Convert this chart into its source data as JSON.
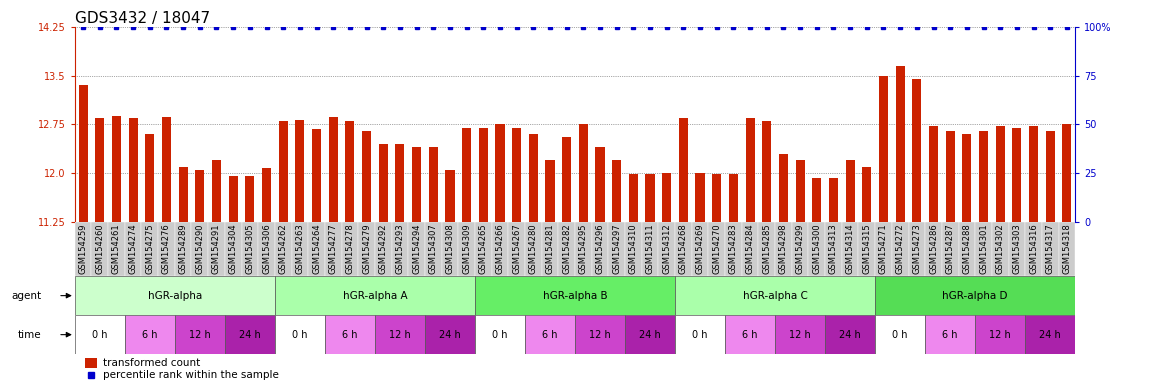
{
  "title": "GDS3432 / 18047",
  "samples": [
    "GSM154259",
    "GSM154260",
    "GSM154261",
    "GSM154274",
    "GSM154275",
    "GSM154276",
    "GSM154289",
    "GSM154290",
    "GSM154291",
    "GSM154304",
    "GSM154305",
    "GSM154306",
    "GSM154262",
    "GSM154263",
    "GSM154264",
    "GSM154277",
    "GSM154278",
    "GSM154279",
    "GSM154292",
    "GSM154293",
    "GSM154294",
    "GSM154307",
    "GSM154308",
    "GSM154309",
    "GSM154265",
    "GSM154266",
    "GSM154267",
    "GSM154280",
    "GSM154281",
    "GSM154282",
    "GSM154295",
    "GSM154296",
    "GSM154297",
    "GSM154310",
    "GSM154311",
    "GSM154312",
    "GSM154268",
    "GSM154269",
    "GSM154270",
    "GSM154283",
    "GSM154284",
    "GSM154285",
    "GSM154298",
    "GSM154299",
    "GSM154300",
    "GSM154313",
    "GSM154314",
    "GSM154315",
    "GSM154271",
    "GSM154272",
    "GSM154273",
    "GSM154286",
    "GSM154287",
    "GSM154288",
    "GSM154301",
    "GSM154302",
    "GSM154303",
    "GSM154316",
    "GSM154317",
    "GSM154318"
  ],
  "bar_values": [
    13.35,
    12.85,
    12.88,
    12.85,
    12.6,
    12.87,
    12.1,
    12.05,
    12.2,
    11.95,
    11.95,
    12.08,
    12.8,
    12.82,
    12.68,
    12.86,
    12.8,
    12.65,
    12.45,
    12.45,
    12.4,
    12.4,
    12.05,
    12.7,
    12.7,
    12.75,
    12.7,
    12.6,
    12.2,
    12.55,
    12.75,
    12.4,
    12.2,
    11.98,
    11.98,
    12.0,
    12.85,
    12.0,
    11.98,
    11.98,
    12.85,
    12.8,
    12.3,
    12.2,
    11.92,
    11.92,
    12.2,
    12.1,
    13.5,
    13.65,
    13.45,
    12.72,
    12.65,
    12.6,
    12.65,
    12.72,
    12.7,
    12.72,
    12.65,
    12.75
  ],
  "percentile_values": [
    100,
    100,
    100,
    100,
    100,
    100,
    100,
    100,
    100,
    100,
    100,
    100,
    100,
    100,
    100,
    100,
    100,
    100,
    100,
    100,
    100,
    100,
    100,
    100,
    100,
    100,
    100,
    100,
    100,
    100,
    100,
    100,
    100,
    100,
    100,
    100,
    100,
    100,
    100,
    100,
    100,
    100,
    100,
    100,
    100,
    100,
    100,
    100,
    100,
    100,
    100,
    100,
    100,
    100,
    100,
    100,
    100,
    100,
    100,
    100
  ],
  "ylim_left": [
    11.25,
    14.25
  ],
  "ylim_right": [
    0,
    100
  ],
  "yticks_left": [
    11.25,
    12.0,
    12.75,
    13.5,
    14.25
  ],
  "yticks_right": [
    0,
    25,
    50,
    75,
    100
  ],
  "bar_color": "#cc2200",
  "dot_color": "#0000cc",
  "bar_bottom": 11.25,
  "agent_groups": [
    {
      "label": "hGR-alpha",
      "start": 0,
      "end": 11,
      "color": "#ccffcc"
    },
    {
      "label": "hGR-alpha A",
      "start": 12,
      "end": 23,
      "color": "#aaffaa"
    },
    {
      "label": "hGR-alpha B",
      "start": 24,
      "end": 35,
      "color": "#66ee66"
    },
    {
      "label": "hGR-alpha C",
      "start": 36,
      "end": 47,
      "color": "#aaffaa"
    },
    {
      "label": "hGR-alpha D",
      "start": 48,
      "end": 59,
      "color": "#55dd55"
    }
  ],
  "time_labels": [
    "0 h",
    "6 h",
    "12 h",
    "24 h"
  ],
  "time_colors": [
    "#ffffff",
    "#ee88ee",
    "#cc44cc",
    "#aa22aa"
  ],
  "legend_bar_label": "transformed count",
  "legend_dot_label": "percentile rank within the sample",
  "grid_color": "#555555",
  "title_fontsize": 11,
  "tick_fontsize": 6,
  "label_fontsize": 8,
  "xtick_bg_color": "#cccccc"
}
